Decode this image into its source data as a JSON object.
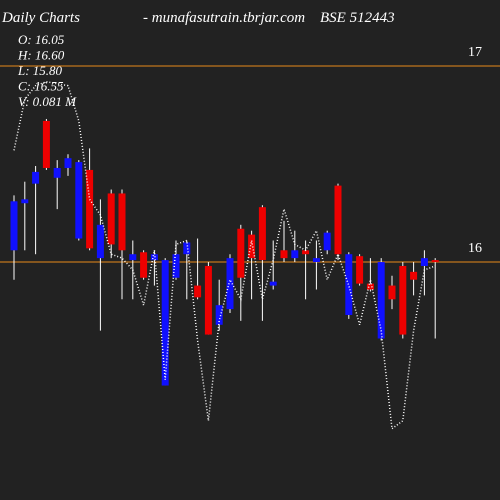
{
  "chart_data": {
    "type": "candlestick",
    "title": "Daily Charts",
    "subtitle": "- munafasutrain.tbrjar.com",
    "symbol": "BSE 512443",
    "ohlcv": [
      "O: 16.05",
      "H: 16.60",
      "L: 15.80",
      "C: 16.55",
      "V: 0.081 M"
    ],
    "open": [
      16.06,
      16.3,
      16.4,
      16.72,
      16.43,
      16.48,
      16.12,
      16.47,
      16.02,
      16.35,
      16.35,
      16.01,
      16.05,
      16.01,
      15.37,
      15.92,
      16.04,
      15.88,
      15.98,
      15.68,
      15.76,
      16.17,
      16.14,
      16.28,
      15.88,
      16.06,
      16.02,
      16.06,
      16.0,
      16.06,
      16.39,
      15.73,
      16.03,
      15.89,
      15.61,
      15.88,
      15.98,
      15.95,
      15.98,
      16.01
    ],
    "high": [
      16.34,
      16.41,
      16.49,
      16.73,
      16.52,
      16.55,
      16.52,
      16.58,
      16.32,
      16.37,
      16.37,
      16.11,
      16.06,
      16.06,
      16.02,
      16.11,
      16.11,
      16.12,
      16.0,
      15.91,
      16.04,
      16.19,
      16.16,
      16.29,
      16.11,
      16.21,
      16.16,
      16.11,
      16.11,
      16.16,
      16.4,
      16.05,
      16.04,
      16.02,
      16.02,
      15.93,
      16.0,
      16.0,
      16.06,
      16.02
    ],
    "low": [
      15.91,
      16.06,
      16.04,
      16.47,
      16.27,
      16.44,
      16.11,
      16.06,
      15.65,
      16.02,
      15.81,
      15.81,
      15.91,
      15.88,
      15.37,
      15.91,
      15.81,
      15.81,
      15.63,
      15.65,
      15.74,
      15.7,
      15.81,
      15.7,
      15.86,
      16.0,
      16.0,
      15.81,
      15.86,
      16.04,
      16.01,
      15.71,
      15.88,
      15.85,
      15.6,
      15.76,
      15.61,
      15.83,
      15.83,
      15.61
    ],
    "close": [
      16.31,
      16.32,
      16.46,
      16.48,
      16.48,
      16.53,
      16.51,
      16.07,
      16.19,
      16.09,
      16.06,
      16.04,
      15.92,
      16.04,
      16.01,
      16.04,
      16.1,
      15.82,
      15.63,
      15.78,
      16.02,
      15.92,
      16.02,
      16.01,
      15.9,
      16.02,
      16.06,
      16.04,
      16.02,
      16.15,
      16.04,
      16.04,
      15.89,
      15.86,
      16.0,
      15.81,
      15.63,
      15.91,
      16.02,
      16.0
    ],
    "up_color": "#1010ff",
    "down_color": "#ee0000",
    "wick_color": "#ffffff",
    "line": {
      "color": "#ffffff",
      "values": [
        16.57,
        16.83,
        16.9,
        16.92,
        16.91,
        16.9,
        16.72,
        16.32,
        16.24,
        16.04,
        16.02,
        15.96,
        15.78,
        16.06,
        15.4,
        16.09,
        16.11,
        15.6,
        15.19,
        15.7,
        15.91,
        15.81,
        16.11,
        15.81,
        16.01,
        16.27,
        16.09,
        16.06,
        16.16,
        15.91,
        16.04,
        15.88,
        15.68,
        15.91,
        15.65,
        15.15,
        15.19,
        15.65,
        15.96,
        15.98
      ]
    },
    "ylim": [
      14.786,
      17.337
    ],
    "yticks": [
      16,
      17
    ],
    "grid": true,
    "grid_color": "#e88a1a"
  }
}
